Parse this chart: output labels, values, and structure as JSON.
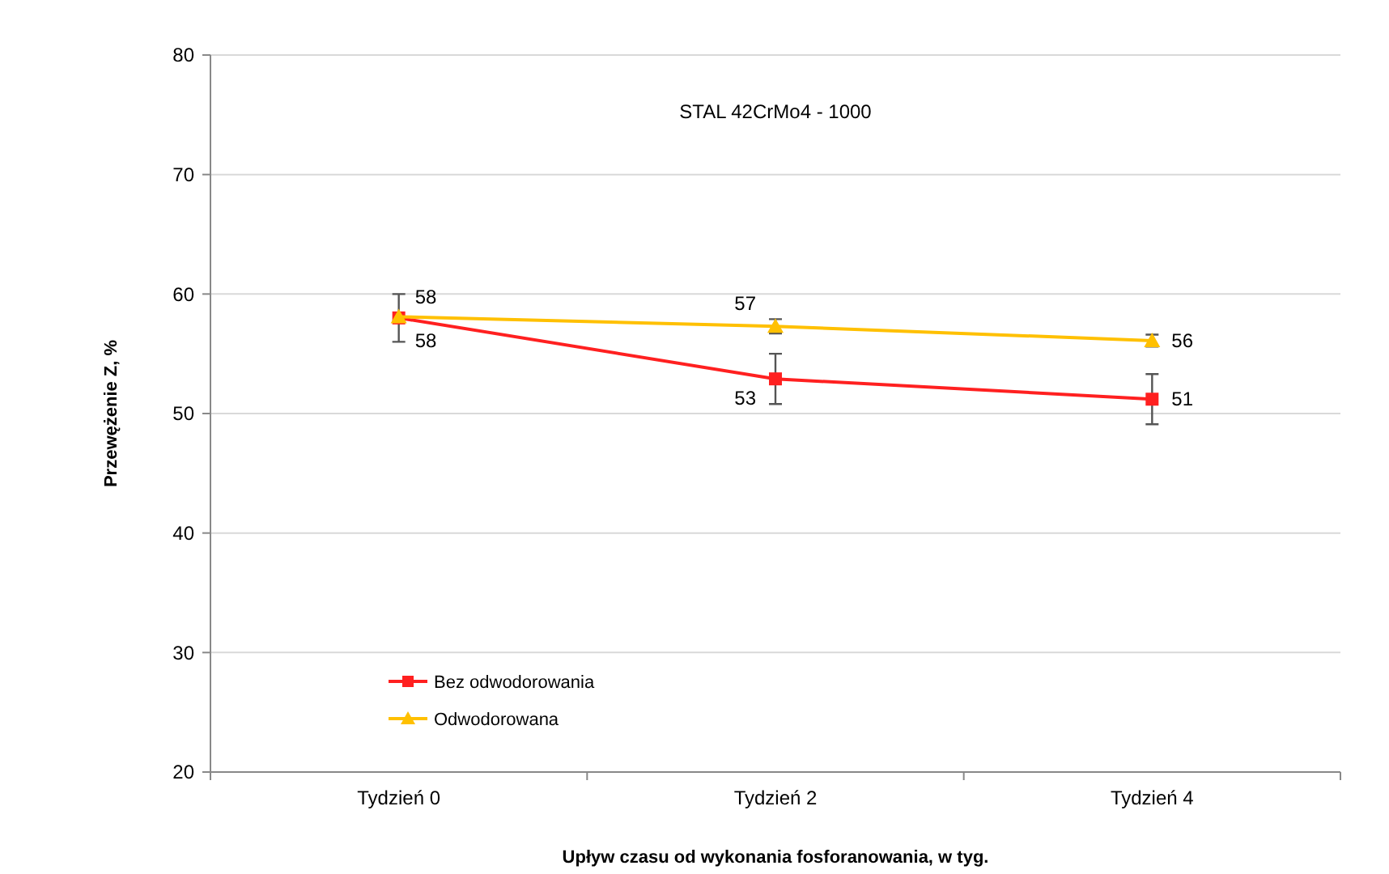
{
  "chart_data": {
    "type": "line",
    "title": "STAL 42CrMo4 - 1000",
    "xlabel": "Upływ czasu od wykonania fosforanowania, w tyg.",
    "ylabel": "Przewężenie Z, %",
    "categories": [
      "Tydzień 0",
      "Tydzień 2",
      "Tydzień 4"
    ],
    "series": [
      {
        "name": "Bez odwodorowania",
        "color": "#ff2020",
        "marker": "square",
        "values": [
          58.0,
          52.9,
          51.2
        ],
        "errors": [
          2.0,
          2.1,
          2.1
        ],
        "value_labels": [
          "58",
          "53",
          "51"
        ]
      },
      {
        "name": "Odwodorowana",
        "color": "#ffc000",
        "marker": "triangle",
        "values": [
          58.1,
          57.3,
          56.1
        ],
        "errors": [
          null,
          0.6,
          0.5
        ],
        "value_labels": [
          "58",
          "57",
          "56"
        ]
      }
    ],
    "ylim": [
      20,
      80
    ],
    "yticks": [
      20,
      30,
      40,
      50,
      60,
      70,
      80
    ],
    "grid": "y",
    "legend": "bottom left"
  }
}
